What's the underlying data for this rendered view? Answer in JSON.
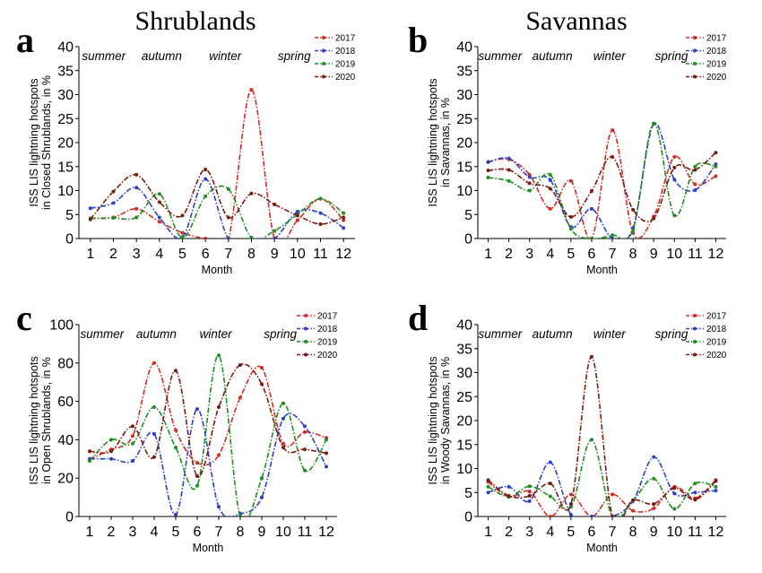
{
  "headings": {
    "left": "Shrublands",
    "right": "Savannas"
  },
  "chart_data": [
    {
      "type": "line",
      "panel": "a",
      "xlabel": "Month",
      "ylabel": [
        "ISS LIS lightning hotspots",
        "in Closed Shrublands, in %"
      ],
      "x": [
        1,
        2,
        3,
        4,
        5,
        6,
        7,
        8,
        9,
        10,
        11,
        12
      ],
      "ylim": [
        0,
        40
      ],
      "yticks": [
        0,
        5,
        10,
        15,
        20,
        25,
        30,
        35,
        40
      ],
      "seasons": [
        "summer",
        "autumn",
        "winter",
        "spring"
      ],
      "legend_position": "top-right",
      "series": [
        {
          "name": "2017",
          "color": "#d42a20",
          "values": [
            4.2,
            4.4,
            6.2,
            3.5,
            1.2,
            0,
            0,
            31,
            0,
            3.8,
            8.3,
            3.8
          ]
        },
        {
          "name": "2018",
          "color": "#2a3fc8",
          "values": [
            6.3,
            7.4,
            10.6,
            4.4,
            0.3,
            12.4,
            0,
            0,
            0,
            5.6,
            5.3,
            2.2
          ]
        },
        {
          "name": "2019",
          "color": "#1e8e1e",
          "values": [
            4.2,
            4.3,
            4.4,
            9.3,
            0.2,
            8.8,
            10.3,
            0.2,
            1.6,
            5.0,
            8.3,
            5.3
          ]
        },
        {
          "name": "2020",
          "color": "#7a1a0f",
          "values": [
            4.0,
            9.8,
            13.3,
            7.6,
            4.8,
            14.4,
            4.4,
            9.4,
            7.1,
            4.8,
            3.0,
            4.4
          ]
        }
      ]
    },
    {
      "type": "line",
      "panel": "b",
      "xlabel": "Month",
      "ylabel": [
        "ISS LIS lightning hotspots",
        "in Savannas, in %"
      ],
      "x": [
        1,
        2,
        3,
        4,
        5,
        6,
        7,
        8,
        9,
        10,
        11,
        12
      ],
      "ylim": [
        0,
        40
      ],
      "yticks": [
        0,
        5,
        10,
        15,
        20,
        25,
        30,
        35,
        40
      ],
      "seasons": [
        "summer",
        "autumn",
        "winter",
        "spring"
      ],
      "legend_position": "top-right",
      "series": [
        {
          "name": "2017",
          "color": "#d42a20",
          "values": [
            16.0,
            16.5,
            13.3,
            6.2,
            12.0,
            0,
            22.6,
            1.2,
            4.6,
            17.0,
            11.3,
            13.0
          ]
        },
        {
          "name": "2018",
          "color": "#2a3fc8",
          "values": [
            15.9,
            16.7,
            12.8,
            12.2,
            2.4,
            6.2,
            0,
            2.2,
            23.9,
            12.3,
            10.1,
            15.5
          ]
        },
        {
          "name": "2019",
          "color": "#1e8e1e",
          "values": [
            12.7,
            12.0,
            10.0,
            13.3,
            2.0,
            0,
            0.7,
            1.8,
            24.0,
            4.8,
            15.0,
            15.0
          ]
        },
        {
          "name": "2020",
          "color": "#7a1a0f",
          "values": [
            14.2,
            14.3,
            11.5,
            10.4,
            4.5,
            9.9,
            17.0,
            6.0,
            4.2,
            14.8,
            14.3,
            17.9
          ]
        }
      ]
    },
    {
      "type": "line",
      "panel": "c",
      "xlabel": "Month",
      "ylabel": [
        "ISS LIS lightning hotspots",
        "in Open Shrublands, in %"
      ],
      "x": [
        1,
        2,
        3,
        4,
        5,
        6,
        7,
        8,
        9,
        10,
        11,
        12
      ],
      "ylim": [
        0,
        100
      ],
      "yticks": [
        0,
        20,
        40,
        60,
        80,
        100
      ],
      "seasons": [
        "summer",
        "autumn",
        "winter",
        "spring"
      ],
      "legend_position": "top-right",
      "series": [
        {
          "name": "2017",
          "color": "#d42a20",
          "values": [
            30.0,
            35.0,
            42.0,
            80.0,
            45.0,
            28.0,
            32.0,
            62.0,
            77.5,
            38.0,
            44.0,
            41.0
          ]
        },
        {
          "name": "2018",
          "color": "#2a3fc8",
          "values": [
            30.0,
            30.0,
            29.0,
            43.0,
            1.0,
            56.0,
            5.0,
            1.5,
            10.0,
            51.0,
            47.0,
            26.0
          ]
        },
        {
          "name": "2019",
          "color": "#1e8e1e",
          "values": [
            29.0,
            40.0,
            38.0,
            57.0,
            36.0,
            16.0,
            84.0,
            0,
            20.0,
            59.0,
            24.0,
            40.0
          ]
        },
        {
          "name": "2020",
          "color": "#7a1a0f",
          "values": [
            34.0,
            34.0,
            47.0,
            31.0,
            76.0,
            21.0,
            57.0,
            79.0,
            69.0,
            36.0,
            35.0,
            33.0
          ]
        }
      ]
    },
    {
      "type": "line",
      "panel": "d",
      "xlabel": "Month",
      "ylabel": [
        "ISS LIS lightning hotspots",
        "in Woody Savannas, in %"
      ],
      "x": [
        1,
        2,
        3,
        4,
        5,
        6,
        7,
        8,
        9,
        10,
        11,
        12
      ],
      "ylim": [
        0,
        40
      ],
      "yticks": [
        0,
        5,
        10,
        15,
        20,
        25,
        30,
        35,
        40
      ],
      "seasons": [
        "summer",
        "autumn",
        "winter",
        "spring"
      ],
      "legend_position": "top-right",
      "series": [
        {
          "name": "2017",
          "color": "#d42a20",
          "values": [
            7.2,
            4.1,
            5.2,
            0,
            4.6,
            0,
            4.6,
            1.2,
            1.7,
            6.2,
            3.8,
            7.6
          ]
        },
        {
          "name": "2018",
          "color": "#2a3fc8",
          "values": [
            5.0,
            6.2,
            3.2,
            11.3,
            0.4,
            0,
            0,
            3.2,
            12.4,
            4.8,
            5.0,
            5.4
          ]
        },
        {
          "name": "2019",
          "color": "#1e8e1e",
          "values": [
            6.2,
            4.1,
            6.3,
            4.2,
            2.0,
            16.0,
            0,
            3.3,
            7.9,
            1.6,
            6.9,
            6.2
          ]
        },
        {
          "name": "2020",
          "color": "#7a1a0f",
          "values": [
            7.6,
            4.3,
            4.3,
            6.9,
            2.6,
            33.3,
            0,
            3.4,
            2.6,
            5.9,
            3.5,
            7.4
          ]
        }
      ]
    }
  ]
}
